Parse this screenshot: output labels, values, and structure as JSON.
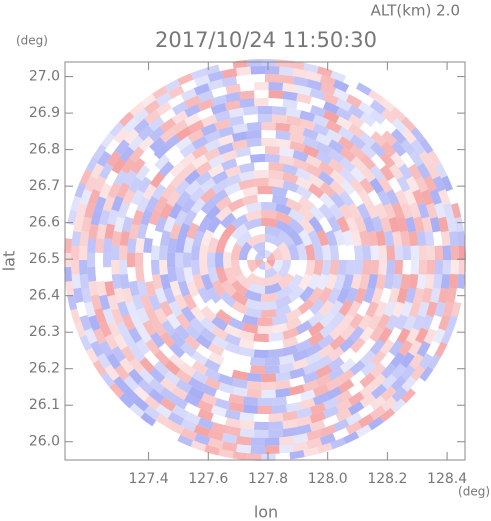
{
  "chart_data": {
    "type": "radar-ppi",
    "title": "2017/10/24 11:50:30",
    "annotation": "ALT(km) 2.0",
    "x_label": "lon",
    "y_label": "lat",
    "x_unit": "(deg)",
    "y_unit": "(deg)",
    "xlim": [
      127.12,
      128.46
    ],
    "ylim": [
      25.95,
      27.04
    ],
    "xticks": [
      127.4,
      127.6,
      127.8,
      {
        "value": 128,
        "label": "128.0"
      },
      128.2,
      128.4
    ],
    "yticks": [
      {
        "value": 26,
        "label": "26.0"
      },
      26.1,
      26.2,
      26.3,
      26.4,
      26.5,
      26.6,
      26.7,
      26.8,
      26.9,
      {
        "value": 27,
        "label": "27.0"
      }
    ]
  }
}
